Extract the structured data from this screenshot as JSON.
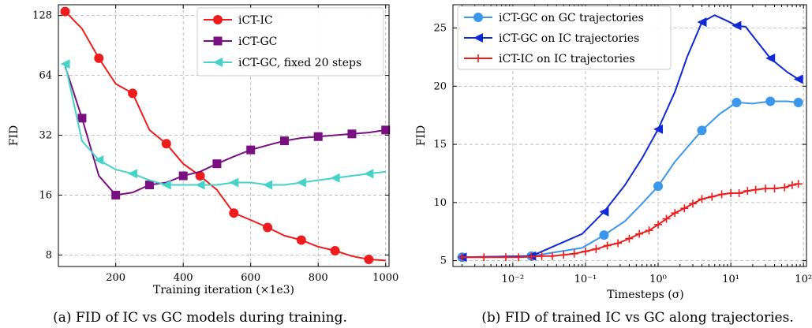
{
  "chart_data": [
    {
      "type": "line",
      "caption": "(a) FID of IC vs GC models during training.",
      "xlabel": "Training iteration (×1e3)",
      "ylabel": "FID",
      "xlim": [
        30,
        1010
      ],
      "ylim": [
        7,
        145
      ],
      "yscale": "log2",
      "xticks": [
        "200",
        "400",
        "600",
        "800",
        "1000"
      ],
      "yticks": [
        "8",
        "16",
        "32",
        "64",
        "128"
      ],
      "grid": true,
      "legend_position": "top-right",
      "series": [
        {
          "name": "iCT-IC",
          "color": "#ee1c1c",
          "marker": "circle",
          "x": [
            50,
            100,
            150,
            200,
            250,
            300,
            350,
            400,
            450,
            500,
            550,
            600,
            650,
            700,
            750,
            800,
            850,
            900,
            950,
            1000
          ],
          "y": [
            134,
            110,
            78,
            58,
            52,
            34,
            29,
            23,
            20,
            17,
            13,
            12,
            11,
            10,
            9.5,
            8.8,
            8.4,
            7.9,
            7.6,
            7.5
          ],
          "marker_every": 2,
          "marker_start": 0
        },
        {
          "name": "iCT-GC",
          "color": "#7a0f82",
          "marker": "square",
          "x": [
            50,
            100,
            150,
            200,
            250,
            300,
            350,
            400,
            450,
            500,
            550,
            600,
            650,
            700,
            750,
            800,
            850,
            900,
            950,
            1000
          ],
          "y": [
            71,
            39,
            20,
            16,
            16.5,
            18,
            18.5,
            20,
            21,
            23,
            25,
            27,
            28.5,
            30,
            31,
            31.5,
            32,
            32.5,
            33,
            34
          ],
          "marker_every": 2,
          "marker_start": 1
        },
        {
          "name": "iCT-GC, fixed 20 steps",
          "color": "#45d3c7",
          "marker": "triangle-left",
          "x": [
            50,
            100,
            150,
            200,
            250,
            300,
            350,
            400,
            450,
            500,
            550,
            600,
            650,
            700,
            750,
            800,
            850,
            900,
            950,
            1000
          ],
          "y": [
            73,
            30,
            24,
            21.5,
            20.5,
            19,
            18,
            18,
            18,
            18,
            18.5,
            18.5,
            18,
            18,
            18.5,
            19,
            19.5,
            20,
            20.5,
            21
          ],
          "marker_every": 2,
          "marker_start": 0
        }
      ]
    },
    {
      "type": "line",
      "caption": "(b) FID of trained IC vs GC along trajectories.",
      "xlabel": "Timesteps (σ)",
      "ylabel": "FID",
      "xscale": "log",
      "xlim": [
        0.0015,
        110
      ],
      "ylim": [
        4.5,
        27
      ],
      "xticks": [
        "10⁻²",
        "10⁻¹",
        "10⁰",
        "10¹",
        "10²"
      ],
      "yticks": [
        "5",
        "10",
        "15",
        "20",
        "25"
      ],
      "grid": true,
      "legend_position": "top-left",
      "series": [
        {
          "name": "iCT-GC on GC trajectories",
          "color": "#3a97eb",
          "marker": "circle",
          "x": [
            0.002,
            0.018,
            0.09,
            0.18,
            0.35,
            0.6,
            1.0,
            1.7,
            3.0,
            4.0,
            7.0,
            12,
            20,
            35,
            60,
            85
          ],
          "y": [
            5.3,
            5.4,
            6.1,
            7.2,
            8.4,
            9.9,
            11.4,
            13.5,
            15.3,
            16.2,
            17.6,
            18.6,
            18.5,
            18.7,
            18.7,
            18.6
          ],
          "markers_at": [
            0,
            1,
            3,
            6,
            9,
            11,
            13,
            15
          ]
        },
        {
          "name": "iCT-GC on IC trajectories",
          "color": "#1028d6",
          "marker": "triangle-left",
          "x": [
            0.002,
            0.018,
            0.09,
            0.18,
            0.35,
            0.6,
            1.0,
            1.7,
            2.5,
            4.0,
            6.0,
            9.0,
            12,
            16,
            22,
            35,
            60,
            85
          ],
          "y": [
            5.3,
            5.4,
            7.3,
            9.2,
            11.5,
            13.8,
            16.3,
            19.5,
            22.5,
            25.5,
            26.1,
            25.6,
            25.2,
            25.1,
            24.0,
            22.4,
            21.2,
            20.6
          ],
          "markers_at": [
            0,
            1,
            3,
            6,
            9,
            12,
            15,
            17
          ]
        },
        {
          "name": "iCT-IC on IC trajectories",
          "color": "#ee1c1c",
          "marker": "plus",
          "x": [
            0.002,
            0.004,
            0.008,
            0.012,
            0.018,
            0.025,
            0.035,
            0.05,
            0.07,
            0.1,
            0.14,
            0.2,
            0.28,
            0.4,
            0.55,
            0.75,
            1.0,
            1.3,
            1.7,
            2.3,
            3.0,
            4.0,
            5.5,
            7.5,
            10,
            13,
            17,
            22,
            30,
            40,
            55,
            70,
            85
          ],
          "y": [
            5.3,
            5.3,
            5.3,
            5.3,
            5.35,
            5.4,
            5.4,
            5.5,
            5.6,
            5.8,
            6.0,
            6.3,
            6.5,
            6.9,
            7.3,
            7.6,
            8.1,
            8.6,
            9.1,
            9.5,
            9.9,
            10.3,
            10.5,
            10.7,
            10.8,
            10.8,
            11.0,
            11.1,
            11.2,
            11.2,
            11.3,
            11.5,
            11.6
          ],
          "markers_at": "all"
        }
      ]
    }
  ]
}
